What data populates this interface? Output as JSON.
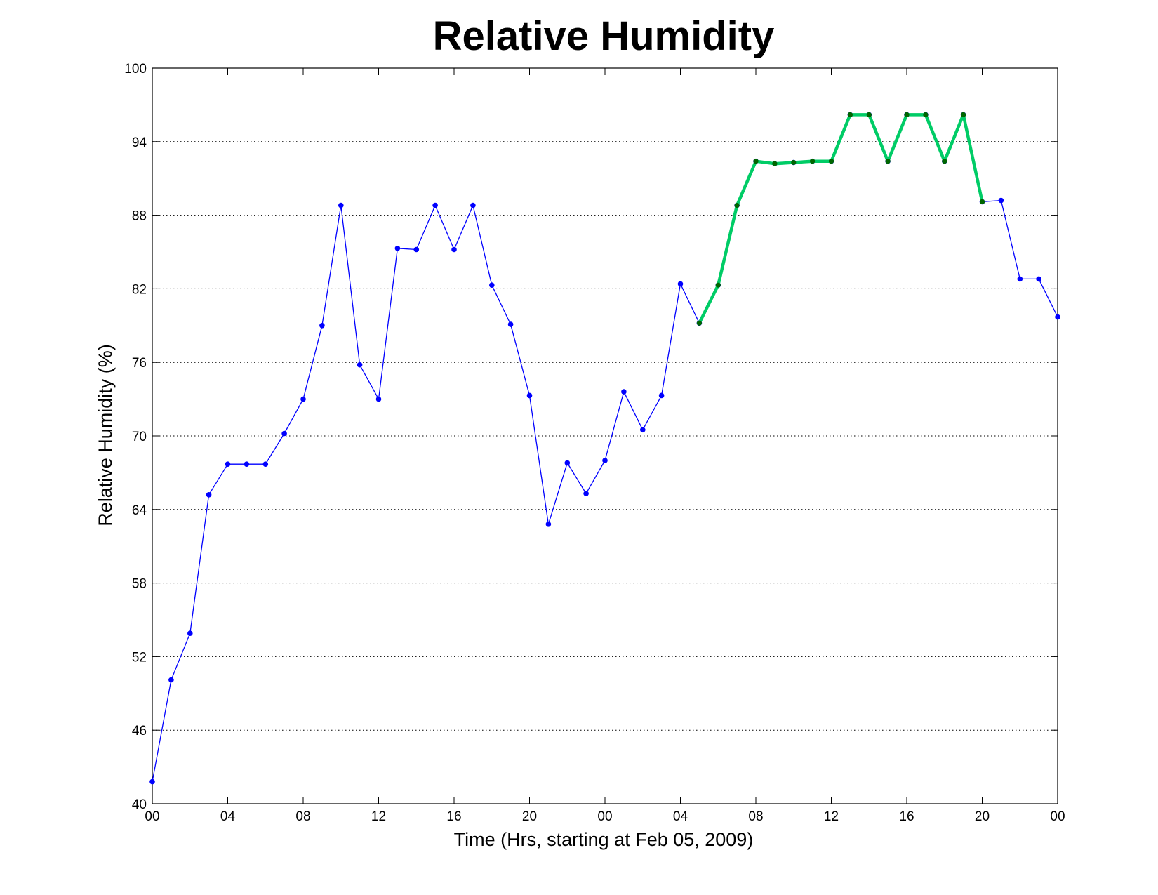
{
  "chart_data": {
    "type": "line",
    "title": "Relative Humidity",
    "xlabel": "Time (Hrs, starting at Feb 05, 2009)",
    "ylabel": "Relative Humidity (%)",
    "xlim": [
      0,
      48
    ],
    "ylim": [
      40,
      100
    ],
    "x_ticks": [
      0,
      4,
      8,
      12,
      16,
      20,
      24,
      28,
      32,
      36,
      40,
      44,
      48
    ],
    "x_tick_labels": [
      "00",
      "04",
      "08",
      "12",
      "16",
      "20",
      "00",
      "04",
      "08",
      "12",
      "16",
      "20",
      "00"
    ],
    "y_ticks": [
      40,
      46,
      52,
      58,
      64,
      70,
      76,
      82,
      88,
      94,
      100
    ],
    "y_tick_labels": [
      "40",
      "46",
      "52",
      "58",
      "64",
      "70",
      "76",
      "82",
      "88",
      "94",
      "100"
    ],
    "grid": true,
    "series": [
      {
        "color": "#0000ff",
        "marker_color": "#0000ff",
        "style": "thin",
        "x": [
          0,
          1,
          2,
          3,
          4,
          5,
          6,
          7,
          8,
          9,
          10,
          11,
          12,
          13,
          14,
          15,
          16,
          17,
          18,
          19,
          20,
          21,
          22,
          23,
          24,
          25,
          26,
          27,
          28,
          29,
          30,
          31,
          32,
          33,
          34,
          35,
          36,
          37,
          38,
          39,
          40,
          41,
          42,
          43,
          44,
          45,
          46,
          47,
          48
        ],
        "y": [
          41.8,
          50.1,
          53.9,
          65.2,
          67.7,
          67.7,
          67.7,
          70.2,
          73.0,
          79.0,
          88.8,
          75.8,
          73.0,
          85.3,
          85.2,
          88.8,
          85.2,
          88.8,
          82.3,
          79.1,
          73.3,
          62.8,
          67.8,
          65.3,
          68.0,
          73.6,
          70.5,
          73.3,
          82.4,
          79.2,
          82.3,
          88.8,
          92.4,
          92.2,
          92.3,
          92.4,
          92.4,
          96.2,
          96.2,
          92.4,
          96.2,
          96.2,
          92.4,
          96.2,
          89.1,
          89.2,
          82.8,
          82.8,
          79.7
        ]
      },
      {
        "color": "#00cc66",
        "marker_color": "#006600",
        "style": "thick",
        "x": [
          29,
          30,
          31,
          32,
          33,
          34,
          35,
          36,
          37,
          38,
          39,
          40,
          41,
          42,
          43,
          44
        ],
        "y": [
          79.2,
          82.3,
          88.8,
          92.4,
          92.2,
          92.3,
          92.4,
          92.4,
          96.2,
          96.2,
          92.4,
          96.2,
          96.2,
          92.4,
          96.2,
          89.1
        ]
      }
    ]
  }
}
